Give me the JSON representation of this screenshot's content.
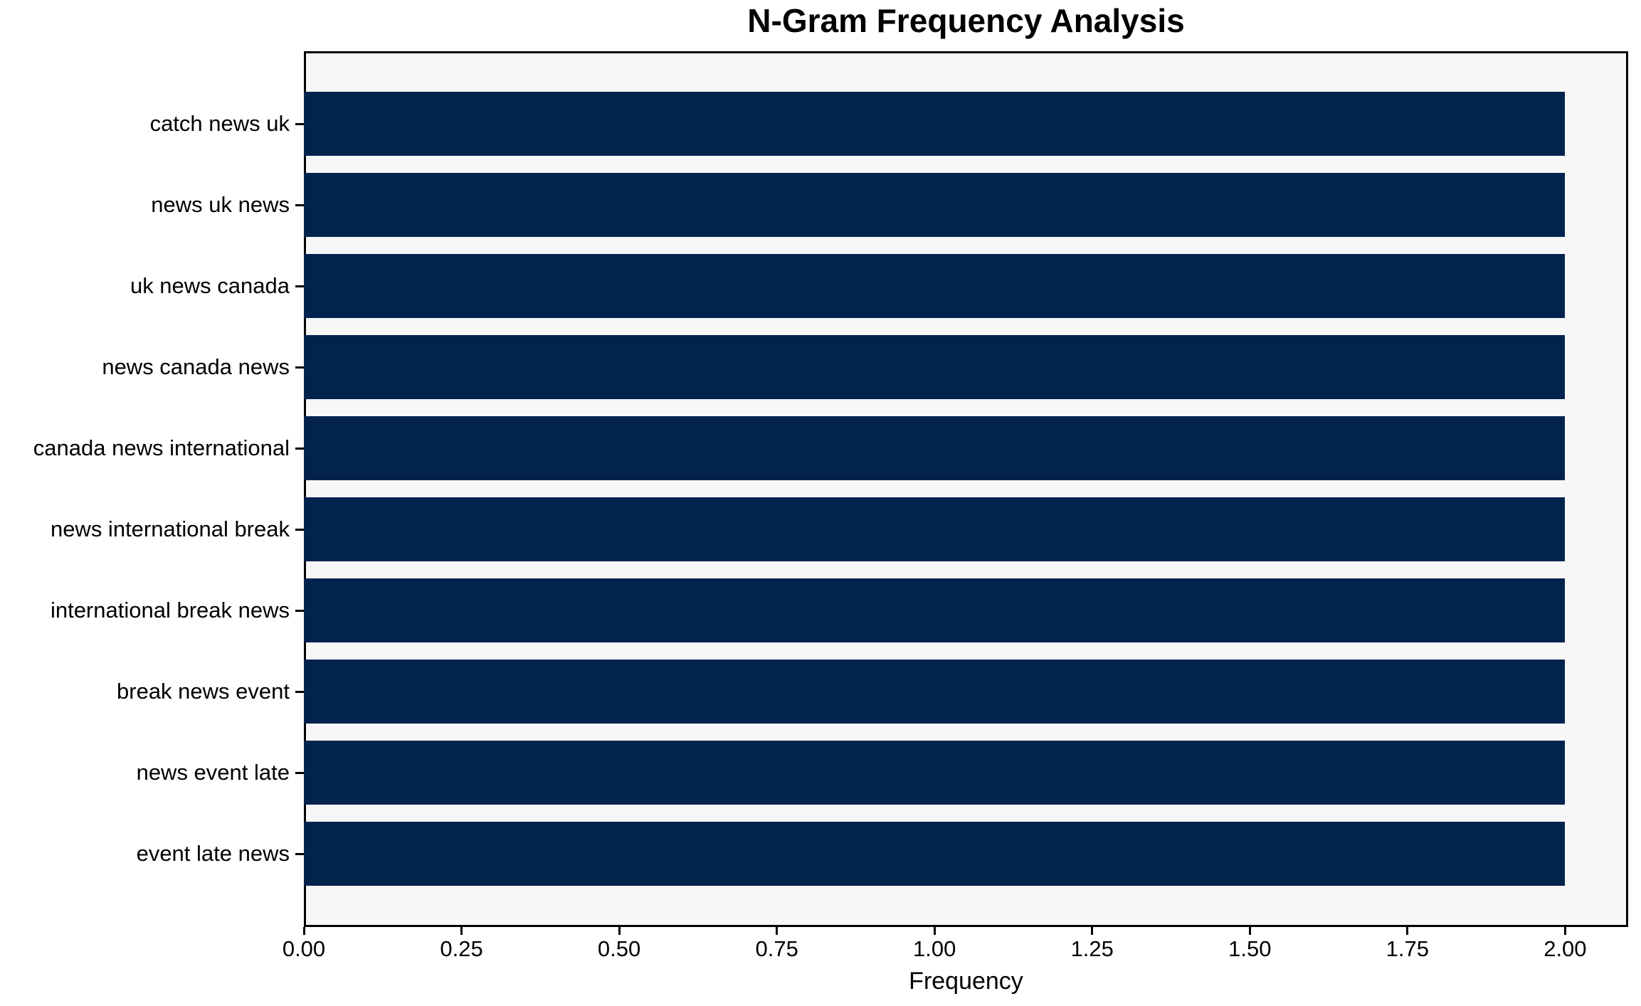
{
  "chart": {
    "title": "N-Gram Frequency Analysis",
    "xlabel": "Frequency"
  },
  "chart_data": {
    "type": "bar",
    "orientation": "horizontal",
    "title": "N-Gram Frequency Analysis",
    "xlabel": "Frequency",
    "ylabel": "",
    "categories": [
      "catch news uk",
      "news uk news",
      "uk news canada",
      "news canada news",
      "canada news international",
      "news international break",
      "international break news",
      "break news event",
      "news event late",
      "event late news"
    ],
    "values": [
      2,
      2,
      2,
      2,
      2,
      2,
      2,
      2,
      2,
      2
    ],
    "xlim": [
      0,
      2.1
    ],
    "xticks": [
      0.0,
      0.25,
      0.5,
      0.75,
      1.0,
      1.25,
      1.5,
      1.75,
      2.0
    ],
    "xtick_labels": [
      "0.00",
      "0.25",
      "0.50",
      "0.75",
      "1.00",
      "1.25",
      "1.50",
      "1.75",
      "2.00"
    ],
    "grid": false,
    "legend": null,
    "colors": {
      "bar": "#01234e",
      "plot_background": "#f7f7f7",
      "figure_background": "#ffffff",
      "spine": "#000000",
      "text": "#000000"
    }
  }
}
